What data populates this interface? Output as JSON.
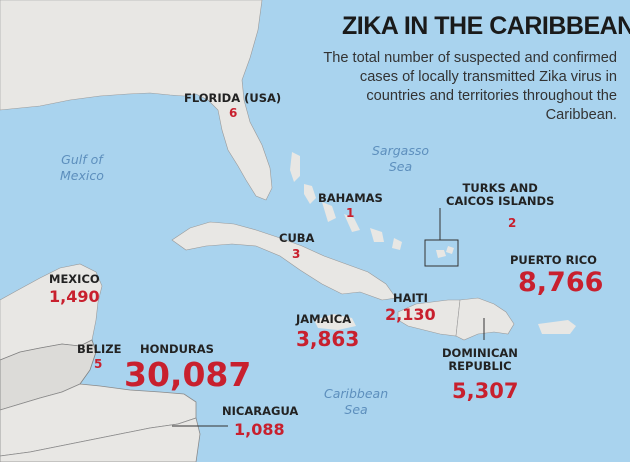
{
  "header": {
    "title": "ZIKA IN THE CARIBBEAN",
    "subtitle": "The total number of suspected and confirmed cases of locally transmitted Zika virus in countries and territories throughout the Caribbean."
  },
  "colors": {
    "water": "#a9d3ee",
    "land": "#e8e7e4",
    "border": "#8f8f8f",
    "case_count": "#c8202e",
    "label": "#222222",
    "sea_label": "#5d8fbd"
  },
  "water_labels": {
    "gulf_line1": "Gulf of",
    "gulf_line2": "Mexico",
    "sargasso_line1": "Sargasso",
    "sargasso_line2": "Sea",
    "caribbean_line1": "Caribbean",
    "caribbean_line2": "Sea"
  },
  "locations": {
    "florida": {
      "name": "FLORIDA (USA)",
      "cases": "6"
    },
    "bahamas": {
      "name": "BAHAMAS",
      "cases": "1"
    },
    "turks_caicos": {
      "name_line1": "TURKS AND",
      "name_line2": "CAICOS ISLANDS",
      "cases": "2"
    },
    "cuba": {
      "name": "CUBA",
      "cases": "3"
    },
    "puerto_rico": {
      "name": "PUERTO RICO",
      "cases": "8,766"
    },
    "mexico": {
      "name": "MEXICO",
      "cases": "1,490"
    },
    "haiti": {
      "name": "HAITI",
      "cases": "2,130"
    },
    "jamaica": {
      "name": "JAMAICA",
      "cases": "3,863"
    },
    "belize": {
      "name": "BELIZE",
      "cases": "5"
    },
    "honduras": {
      "name": "HONDURAS",
      "cases": "30,087"
    },
    "dominican_republic": {
      "name_line1": "DOMINICAN",
      "name_line2": "REPUBLIC",
      "cases": "5,307"
    },
    "nicaragua": {
      "name": "NICARAGUA",
      "cases": "1,088"
    }
  }
}
